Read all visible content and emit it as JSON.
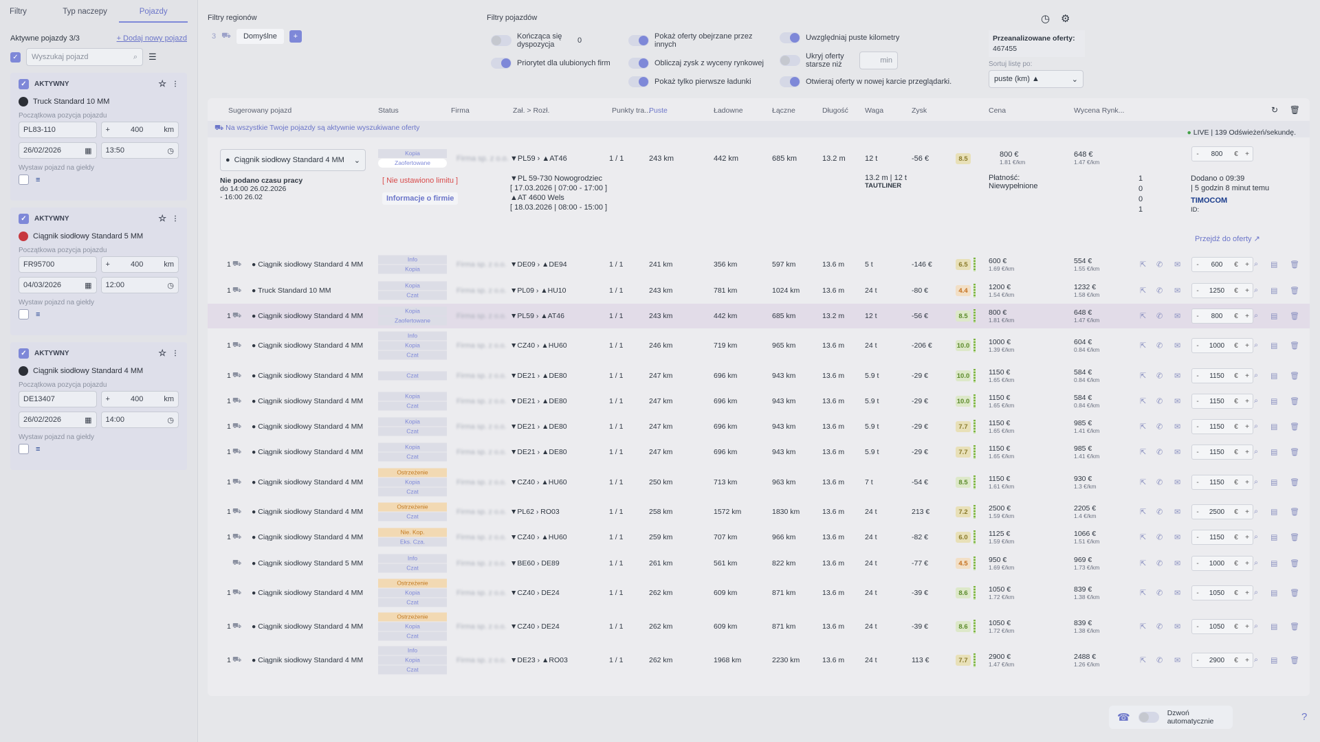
{
  "sidebar": {
    "tabs": [
      "Filtry",
      "Typ naczepy",
      "Pojazdy"
    ],
    "active_label": "Aktywne pojazdy 3/3",
    "add_label": "+ Dodaj nowy pojazd",
    "search_placeholder": "Wyszukaj pojazd",
    "vehicles": [
      {
        "status": "AKTYWNY",
        "name": "Truck Standard 10 MM",
        "pos_label": "Początkowa pozycja pojazdu",
        "code": "PL83-110",
        "km": "400",
        "unit": "km",
        "date": "26/02/2026",
        "time": "13:50",
        "exch_label": "Wystaw pojazd na giełdy"
      },
      {
        "status": "AKTYWNY",
        "name": "Ciągnik siodłowy Standard 5 MM",
        "pos_label": "Początkowa pozycja pojazdu",
        "code": "FR95700",
        "km": "400",
        "unit": "km",
        "date": "04/03/2026",
        "time": "12:00",
        "exch_label": "Wystaw pojazd na giełdy"
      },
      {
        "status": "AKTYWNY",
        "name": "Ciągnik siodłowy Standard 4 MM",
        "pos_label": "Początkowa pozycja pojazdu",
        "code": "DE13407",
        "km": "400",
        "unit": "km",
        "date": "26/02/2026",
        "time": "14:00",
        "exch_label": "Wystaw pojazd na giełdy"
      }
    ]
  },
  "filters": {
    "region_title": "Filtry regionów",
    "region_count": "3",
    "region_default": "Domyślne",
    "vehicle_title": "Filtry pojazdów",
    "t_ending": "Kończąca się dyspozycja",
    "t_ending_val": "0",
    "t_fav": "Priorytet dla ulubionych firm",
    "t_seen": "Pokaż oferty obejrzane przez innych",
    "t_profit": "Obliczaj zysk z wyceny rynkowej",
    "t_first": "Pokaż tylko pierwsze ładunki",
    "t_empty": "Uwzględniaj puste kilometry",
    "t_hide": "Ukryj oferty starsze niż",
    "t_hide_unit": "min",
    "t_newtab": "Otwieraj oferty w nowej karcie przeglądarki.",
    "analyzed_label": "Przeanalizowane oferty:",
    "analyzed_val": "467455",
    "sort_label": "Sortuj listę po:",
    "sort_val": "puste (km) ▲"
  },
  "table": {
    "headers": [
      "Sugerowany pojazd",
      "Status",
      "Firma",
      "Zał. > Rozł.",
      "Punkty tra...",
      "Puste",
      "Ładowne",
      "Łączne",
      "Długość",
      "Waga",
      "Zysk",
      "Cena",
      "Wycena Rynk..."
    ],
    "notice": "Na wszystkie Twoje pojazdy są aktywnie wyszukiwane oferty",
    "live": "LIVE | 139 Odświeżeń/sekundę.",
    "expanded": {
      "vehicle": "Ciągnik siodłowy Standard 4 MM",
      "tags": [
        "Kopia",
        "Zaofertowane"
      ],
      "route": "▼PL59 › ▲AT46",
      "points": "1 / 1",
      "empty": "243 km",
      "loaded": "442 km",
      "total": "685 km",
      "len": "13.2 m",
      "weight": "12 t",
      "profit": "-56 €",
      "score": "8.5",
      "price": "800 €",
      "price_sub": "1.81 €/km",
      "market": "648 €",
      "market_sub": "1.47 €/km",
      "step": "800",
      "work": "Nie podano czasu pracy",
      "work2": "do 14:00 26.02.2026",
      "work3": "- 16:00 26.02",
      "limit": "[ Nie ustawiono limitu ]",
      "info_btn": "Informacje o firmie",
      "from": "▼PL 59-730 Nowogrodziec",
      "from_t": "[ 17.03.2026 | 07:00 - 17:00 ]",
      "to": "▲AT 4600 Wels",
      "to_t": "[ 18.03.2026 | 08:00 - 15:00 ]",
      "dims": "13.2 m | 12 t",
      "trailer": "TAUTLINER",
      "payment": "Płatność: Niewypełnione",
      "c1": "1",
      "c2": "0",
      "c3": "0",
      "c4": "1",
      "added": "Dodano o 09:39",
      "added2": "| 5 godzin 8 minut temu",
      "brand": "TIMOCOM",
      "id_label": "ID:",
      "goto": "Przejdź do oferty ↗"
    },
    "rows": [
      {
        "n": "1",
        "veh": "Ciągnik siodłowy Standard 4 MM",
        "tags": [
          "Info",
          "Kopia"
        ],
        "route": "▼DE09 › ▲DE94",
        "pts": "1 / 1",
        "empty": "241 km",
        "loaded": "356 km",
        "total": "597 km",
        "len": "13.6 m",
        "w": "5 t",
        "profit": "-146 €",
        "score": "6.5",
        "price": "600 €",
        "ps": "1.69 €/km",
        "mk": "554 €",
        "ms": "1.55 €/km",
        "st": "600"
      },
      {
        "n": "1",
        "veh": "Truck Standard 10 MM",
        "tags": [
          "Kopia",
          "Czat"
        ],
        "route": "▼PL09 › ▲HU10",
        "pts": "1 / 1",
        "empty": "243 km",
        "loaded": "781 km",
        "total": "1024 km",
        "len": "13.6 m",
        "w": "24 t",
        "profit": "-80 €",
        "score": "4.4",
        "price": "1200 €",
        "ps": "1.54 €/km",
        "mk": "1232 €",
        "ms": "1.58 €/km",
        "st": "1250"
      },
      {
        "n": "1",
        "veh": "Ciągnik siodłowy Standard 4 MM",
        "tags": [
          "Kopia",
          "Zaofertowane"
        ],
        "route": "▼PL59 › ▲AT46",
        "pts": "1 / 1",
        "empty": "243 km",
        "loaded": "442 km",
        "total": "685 km",
        "len": "13.2 m",
        "w": "12 t",
        "profit": "-56 €",
        "score": "8.5",
        "price": "800 €",
        "ps": "1.81 €/km",
        "mk": "648 €",
        "ms": "1.47 €/km",
        "st": "800"
      },
      {
        "n": "1",
        "veh": "Ciągnik siodłowy Standard 4 MM",
        "tags": [
          "Info",
          "Kopia",
          "Czat"
        ],
        "route": "▼CZ40 › ▲HU60",
        "pts": "1 / 1",
        "empty": "246 km",
        "loaded": "719 km",
        "total": "965 km",
        "len": "13.6 m",
        "w": "24 t",
        "profit": "-206 €",
        "score": "10.0",
        "price": "1000 €",
        "ps": "1.39 €/km",
        "mk": "604 €",
        "ms": "0.84 €/km",
        "st": "1000"
      },
      {
        "n": "1",
        "veh": "Ciągnik siodłowy Standard 4 MM",
        "tags": [
          "Czat"
        ],
        "route": "▼DE21 › ▲DE80",
        "pts": "1 / 1",
        "empty": "247 km",
        "loaded": "696 km",
        "total": "943 km",
        "len": "13.6 m",
        "w": "5.9 t",
        "profit": "-29 €",
        "score": "10.0",
        "price": "1150 €",
        "ps": "1.65 €/km",
        "mk": "584 €",
        "ms": "0.84 €/km",
        "st": "1150"
      },
      {
        "n": "1",
        "veh": "Ciągnik siodłowy Standard 4 MM",
        "tags": [
          "Kopia",
          "Czat"
        ],
        "route": "▼DE21 › ▲DE80",
        "pts": "1 / 1",
        "empty": "247 km",
        "loaded": "696 km",
        "total": "943 km",
        "len": "13.6 m",
        "w": "5.9 t",
        "profit": "-29 €",
        "score": "10.0",
        "price": "1150 €",
        "ps": "1.65 €/km",
        "mk": "584 €",
        "ms": "0.84 €/km",
        "st": "1150"
      },
      {
        "n": "1",
        "veh": "Ciągnik siodłowy Standard 4 MM",
        "tags": [
          "Kopia",
          "Czat"
        ],
        "route": "▼DE21 › ▲DE80",
        "pts": "1 / 1",
        "empty": "247 km",
        "loaded": "696 km",
        "total": "943 km",
        "len": "13.6 m",
        "w": "5.9 t",
        "profit": "-29 €",
        "score": "7.7",
        "price": "1150 €",
        "ps": "1.65 €/km",
        "mk": "985 €",
        "ms": "1.41 €/km",
        "st": "1150"
      },
      {
        "n": "1",
        "veh": "Ciągnik siodłowy Standard 4 MM",
        "tags": [
          "Kopia",
          "Czat"
        ],
        "route": "▼DE21 › ▲DE80",
        "pts": "1 / 1",
        "empty": "247 km",
        "loaded": "696 km",
        "total": "943 km",
        "len": "13.6 m",
        "w": "5.9 t",
        "profit": "-29 €",
        "score": "7.7",
        "price": "1150 €",
        "ps": "1.65 €/km",
        "mk": "985 €",
        "ms": "1.41 €/km",
        "st": "1150"
      },
      {
        "n": "1",
        "veh": "Ciągnik siodłowy Standard 4 MM",
        "tags": [
          "Ostrzeżenie",
          "Kopia",
          "Czat"
        ],
        "route": "▼CZ40 › ▲HU60",
        "pts": "1 / 1",
        "empty": "250 km",
        "loaded": "713 km",
        "total": "963 km",
        "len": "13.6 m",
        "w": "7 t",
        "profit": "-54 €",
        "score": "8.5",
        "price": "1150 €",
        "ps": "1.61 €/km",
        "mk": "930 €",
        "ms": "1.3 €/km",
        "st": "1150"
      },
      {
        "n": "1",
        "veh": "Ciągnik siodłowy Standard 4 MM",
        "tags": [
          "Ostrzeżenie",
          "Czat"
        ],
        "route": "▼PL62 › RO03",
        "pts": "1 / 1",
        "empty": "258 km",
        "loaded": "1572 km",
        "total": "1830 km",
        "len": "13.6 m",
        "w": "24 t",
        "profit": "213 €",
        "score": "7.2",
        "price": "2500 €",
        "ps": "1.59 €/km",
        "mk": "2205 €",
        "ms": "1.4 €/km",
        "st": "2500"
      },
      {
        "n": "1",
        "veh": "Ciągnik siodłowy Standard 4 MM",
        "tags": [
          "Nie. Kop.",
          "Eks. Cza."
        ],
        "route": "▼CZ40 › ▲HU60",
        "pts": "1 / 1",
        "empty": "259 km",
        "loaded": "707 km",
        "total": "966 km",
        "len": "13.6 m",
        "w": "24 t",
        "profit": "-82 €",
        "score": "6.0",
        "price": "1125 €",
        "ps": "1.59 €/km",
        "mk": "1066 €",
        "ms": "1.51 €/km",
        "st": "1150"
      },
      {
        "n": "",
        "veh": "Ciągnik siodłowy Standard 5 MM",
        "tags": [
          "Info",
          "Czat"
        ],
        "route": "▼BE60 › DE89",
        "pts": "1 / 1",
        "empty": "261 km",
        "loaded": "561 km",
        "total": "822 km",
        "len": "13.6 m",
        "w": "24 t",
        "profit": "-77 €",
        "score": "4.5",
        "price": "950 €",
        "ps": "1.69 €/km",
        "mk": "969 €",
        "ms": "1.73 €/km",
        "st": "1000"
      },
      {
        "n": "1",
        "veh": "Ciągnik siodłowy Standard 4 MM",
        "tags": [
          "Ostrzeżenie",
          "Kopia",
          "Czat"
        ],
        "route": "▼CZ40 › DE24",
        "pts": "1 / 1",
        "empty": "262 km",
        "loaded": "609 km",
        "total": "871 km",
        "len": "13.6 m",
        "w": "24 t",
        "profit": "-39 €",
        "score": "8.6",
        "price": "1050 €",
        "ps": "1.72 €/km",
        "mk": "839 €",
        "ms": "1.38 €/km",
        "st": "1050"
      },
      {
        "n": "1",
        "veh": "Ciągnik siodłowy Standard 4 MM",
        "tags": [
          "Ostrzeżenie",
          "Kopia",
          "Czat"
        ],
        "route": "▼CZ40 › DE24",
        "pts": "1 / 1",
        "empty": "262 km",
        "loaded": "609 km",
        "total": "871 km",
        "len": "13.6 m",
        "w": "24 t",
        "profit": "-39 €",
        "score": "8.6",
        "price": "1050 €",
        "ps": "1.72 €/km",
        "mk": "839 €",
        "ms": "1.38 €/km",
        "st": "1050"
      },
      {
        "n": "1",
        "veh": "Ciągnik siodłowy Standard 4 MM",
        "tags": [
          "Info",
          "Kopia",
          "Czat"
        ],
        "route": "▼DE23 › ▲RO03",
        "pts": "1 / 1",
        "empty": "262 km",
        "loaded": "1968 km",
        "total": "2230 km",
        "len": "13.6 m",
        "w": "24 t",
        "profit": "113 €",
        "score": "7.7",
        "price": "2900 €",
        "ps": "1.47 €/km",
        "mk": "2488 €",
        "ms": "1.26 €/km",
        "st": "2900"
      }
    ]
  },
  "call": {
    "label": "Dzwoń automatycznie"
  }
}
